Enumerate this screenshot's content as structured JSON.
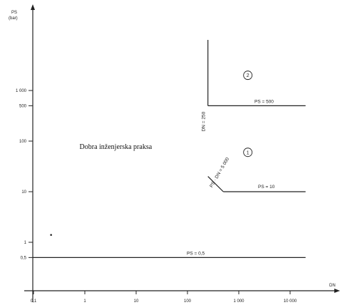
{
  "chart_data": {
    "type": "line",
    "title": "",
    "xlabel": "DN",
    "ylabel": "PS (bar)",
    "y_label_lines": [
      "PS",
      "(bar)"
    ],
    "x_scale": "log",
    "y_scale": "log",
    "x_ticks": [
      {
        "value": 0.1,
        "label": "0,1"
      },
      {
        "value": 1,
        "label": "1"
      },
      {
        "value": 10,
        "label": "10"
      },
      {
        "value": 100,
        "label": "100"
      },
      {
        "value": 1000,
        "label": "1 000"
      },
      {
        "value": 10000,
        "label": "10 000"
      }
    ],
    "y_ticks": [
      {
        "value": 0.5,
        "label": "0,5"
      },
      {
        "value": 1,
        "label": "1"
      },
      {
        "value": 10,
        "label": "10"
      },
      {
        "value": 100,
        "label": "100"
      },
      {
        "value": 500,
        "label": "500"
      },
      {
        "value": 1000,
        "label": "1 000"
      }
    ],
    "boundaries": [
      {
        "label": "PS = 0,5",
        "points": [
          [
            0.1,
            0.5
          ],
          [
            20000,
            0.5
          ]
        ]
      },
      {
        "label": "PS = 10",
        "points": [
          [
            500,
            10
          ],
          [
            20000,
            10
          ]
        ]
      },
      {
        "label": "PS = 500",
        "points": [
          [
            250,
            500
          ],
          [
            20000,
            500
          ]
        ]
      },
      {
        "label": "DN = 250",
        "points": [
          [
            250,
            10000
          ],
          [
            250,
            500
          ]
        ]
      },
      {
        "label": "PS · DN = 5 000",
        "points": [
          [
            250,
            20
          ],
          [
            500,
            10
          ]
        ]
      }
    ],
    "regions": [
      {
        "label": "2",
        "x": 1500,
        "y": 2000
      },
      {
        "label": "1",
        "x": 1500,
        "y": 60
      }
    ],
    "annotation": {
      "text": "Dobra inženjerska praksa",
      "x": 4,
      "y": 70
    },
    "point": {
      "x": 0.22,
      "y": 1.4
    }
  }
}
